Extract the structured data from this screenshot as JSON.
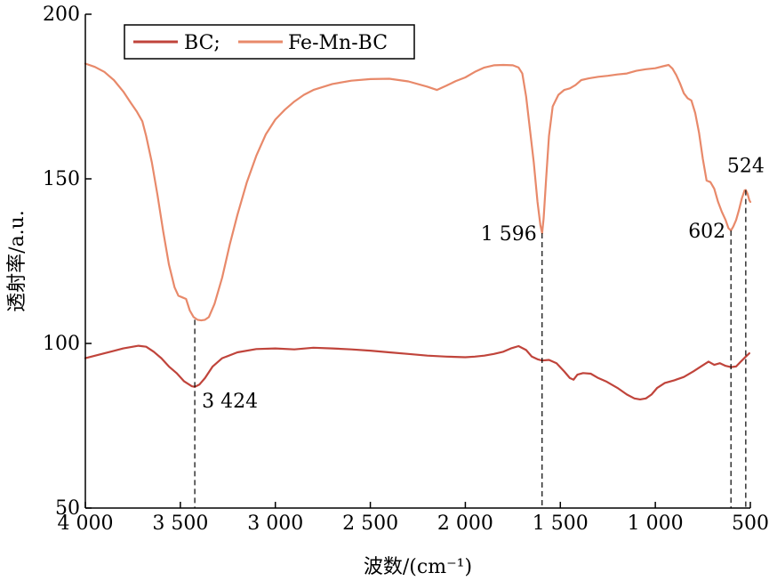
{
  "chart_data": {
    "type": "line",
    "title": "",
    "xlabel": "波数/(cm⁻¹)",
    "ylabel": "透射率/a.u.",
    "xlim": [
      4000,
      500
    ],
    "ylim": [
      50,
      200
    ],
    "x_reversed": true,
    "x_ticks": [
      {
        "value": 4000,
        "label": "4 000"
      },
      {
        "value": 3500,
        "label": "3 500"
      },
      {
        "value": 3000,
        "label": "3 000"
      },
      {
        "value": 2500,
        "label": "2 500"
      },
      {
        "value": 2000,
        "label": "2 000"
      },
      {
        "value": 1500,
        "label": "1 500"
      },
      {
        "value": 1000,
        "label": "1 000"
      },
      {
        "value": 500,
        "label": "500"
      }
    ],
    "y_ticks": [
      {
        "value": 50,
        "label": "50"
      },
      {
        "value": 100,
        "label": "100"
      },
      {
        "value": 150,
        "label": "150"
      },
      {
        "value": 200,
        "label": "200"
      }
    ],
    "grid": false,
    "legend_position": "top-left",
    "series": [
      {
        "name": "BC;",
        "color": "#c0443b",
        "points": [
          [
            4000,
            95.5
          ],
          [
            3900,
            97.0
          ],
          [
            3800,
            98.5
          ],
          [
            3720,
            99.3
          ],
          [
            3680,
            99.0
          ],
          [
            3640,
            97.5
          ],
          [
            3600,
            95.5
          ],
          [
            3560,
            93.0
          ],
          [
            3520,
            91.0
          ],
          [
            3480,
            88.5
          ],
          [
            3440,
            87.0
          ],
          [
            3424,
            86.8
          ],
          [
            3400,
            87.5
          ],
          [
            3370,
            89.5
          ],
          [
            3330,
            93.0
          ],
          [
            3280,
            95.5
          ],
          [
            3200,
            97.3
          ],
          [
            3100,
            98.3
          ],
          [
            3000,
            98.5
          ],
          [
            2900,
            98.2
          ],
          [
            2800,
            98.7
          ],
          [
            2700,
            98.5
          ],
          [
            2600,
            98.2
          ],
          [
            2500,
            97.8
          ],
          [
            2400,
            97.3
          ],
          [
            2300,
            96.8
          ],
          [
            2200,
            96.3
          ],
          [
            2100,
            96.0
          ],
          [
            2000,
            95.8
          ],
          [
            1950,
            96.0
          ],
          [
            1900,
            96.3
          ],
          [
            1850,
            96.8
          ],
          [
            1800,
            97.5
          ],
          [
            1760,
            98.5
          ],
          [
            1720,
            99.2
          ],
          [
            1680,
            98.0
          ],
          [
            1650,
            96.0
          ],
          [
            1620,
            95.2
          ],
          [
            1596,
            94.8
          ],
          [
            1560,
            95.0
          ],
          [
            1520,
            94.0
          ],
          [
            1480,
            91.5
          ],
          [
            1450,
            89.5
          ],
          [
            1430,
            89.0
          ],
          [
            1410,
            90.5
          ],
          [
            1380,
            91.0
          ],
          [
            1340,
            90.8
          ],
          [
            1300,
            89.5
          ],
          [
            1260,
            88.5
          ],
          [
            1200,
            86.5
          ],
          [
            1150,
            84.5
          ],
          [
            1110,
            83.3
          ],
          [
            1080,
            83.0
          ],
          [
            1050,
            83.3
          ],
          [
            1020,
            84.5
          ],
          [
            990,
            86.5
          ],
          [
            950,
            88.0
          ],
          [
            900,
            88.8
          ],
          [
            850,
            89.8
          ],
          [
            800,
            91.5
          ],
          [
            760,
            93.0
          ],
          [
            720,
            94.5
          ],
          [
            690,
            93.5
          ],
          [
            660,
            94.0
          ],
          [
            630,
            93.2
          ],
          [
            602,
            92.8
          ],
          [
            575,
            93.0
          ],
          [
            550,
            94.5
          ],
          [
            524,
            96.0
          ],
          [
            505,
            97.0
          ]
        ]
      },
      {
        "name": "Fe-Mn-BC",
        "color": "#e8896a",
        "points": [
          [
            4000,
            185.0
          ],
          [
            3950,
            184.0
          ],
          [
            3900,
            182.5
          ],
          [
            3850,
            180.0
          ],
          [
            3800,
            176.5
          ],
          [
            3760,
            173.0
          ],
          [
            3730,
            170.5
          ],
          [
            3700,
            167.5
          ],
          [
            3680,
            163.0
          ],
          [
            3650,
            155.0
          ],
          [
            3620,
            145.0
          ],
          [
            3590,
            134.0
          ],
          [
            3560,
            124.0
          ],
          [
            3530,
            117.0
          ],
          [
            3510,
            114.5
          ],
          [
            3490,
            114.0
          ],
          [
            3470,
            113.5
          ],
          [
            3450,
            110.0
          ],
          [
            3430,
            108.0
          ],
          [
            3410,
            107.2
          ],
          [
            3390,
            107.0
          ],
          [
            3370,
            107.2
          ],
          [
            3350,
            108.0
          ],
          [
            3320,
            112.0
          ],
          [
            3280,
            120.0
          ],
          [
            3240,
            130.0
          ],
          [
            3200,
            139.0
          ],
          [
            3150,
            149.0
          ],
          [
            3100,
            157.0
          ],
          [
            3050,
            163.5
          ],
          [
            3000,
            168.0
          ],
          [
            2950,
            171.0
          ],
          [
            2900,
            173.5
          ],
          [
            2850,
            175.5
          ],
          [
            2800,
            177.0
          ],
          [
            2700,
            178.8
          ],
          [
            2600,
            179.8
          ],
          [
            2500,
            180.3
          ],
          [
            2400,
            180.4
          ],
          [
            2300,
            179.6
          ],
          [
            2200,
            178.0
          ],
          [
            2150,
            177.0
          ],
          [
            2100,
            178.3
          ],
          [
            2050,
            179.7
          ],
          [
            2000,
            180.8
          ],
          [
            1950,
            182.5
          ],
          [
            1900,
            183.8
          ],
          [
            1850,
            184.5
          ],
          [
            1800,
            184.6
          ],
          [
            1750,
            184.5
          ],
          [
            1720,
            183.8
          ],
          [
            1700,
            182.0
          ],
          [
            1680,
            175.0
          ],
          [
            1660,
            165.0
          ],
          [
            1640,
            155.0
          ],
          [
            1620,
            143.0
          ],
          [
            1605,
            136.0
          ],
          [
            1596,
            133.5
          ],
          [
            1588,
            138.0
          ],
          [
            1575,
            150.0
          ],
          [
            1560,
            163.0
          ],
          [
            1540,
            172.0
          ],
          [
            1510,
            175.5
          ],
          [
            1480,
            177.0
          ],
          [
            1450,
            177.5
          ],
          [
            1420,
            178.5
          ],
          [
            1390,
            180.0
          ],
          [
            1350,
            180.5
          ],
          [
            1300,
            181.0
          ],
          [
            1250,
            181.3
          ],
          [
            1200,
            181.7
          ],
          [
            1150,
            182.0
          ],
          [
            1100,
            182.8
          ],
          [
            1050,
            183.3
          ],
          [
            1000,
            183.6
          ],
          [
            960,
            184.2
          ],
          [
            930,
            184.6
          ],
          [
            910,
            183.5
          ],
          [
            890,
            181.5
          ],
          [
            870,
            179.0
          ],
          [
            850,
            176.0
          ],
          [
            830,
            174.5
          ],
          [
            810,
            173.8
          ],
          [
            790,
            170.0
          ],
          [
            770,
            164.0
          ],
          [
            750,
            156.0
          ],
          [
            730,
            149.5
          ],
          [
            710,
            149.0
          ],
          [
            690,
            147.0
          ],
          [
            670,
            143.0
          ],
          [
            650,
            140.0
          ],
          [
            630,
            137.5
          ],
          [
            615,
            135.0
          ],
          [
            602,
            134.3
          ],
          [
            590,
            135.5
          ],
          [
            575,
            137.5
          ],
          [
            560,
            140.5
          ],
          [
            545,
            144.0
          ],
          [
            530,
            146.5
          ],
          [
            524,
            146.6
          ],
          [
            515,
            145.5
          ],
          [
            505,
            143.5
          ],
          [
            500,
            143.0
          ]
        ]
      }
    ],
    "annotations": [
      {
        "label": "3 424",
        "x": 3424,
        "y_line_top": 107.2,
        "y_line_bottom": 50,
        "label_anchor": "right-below-bc"
      },
      {
        "label": "1 596",
        "x": 1596,
        "y_line_top": 133.5,
        "y_line_bottom": 50,
        "label_anchor": "left"
      },
      {
        "label": "602",
        "x": 602,
        "y_line_top": 134.3,
        "y_line_bottom": 50,
        "label_anchor": "left"
      },
      {
        "label": "524",
        "x": 524,
        "y_line_top": 146.6,
        "y_line_bottom": 50,
        "label_anchor": "above"
      }
    ]
  }
}
